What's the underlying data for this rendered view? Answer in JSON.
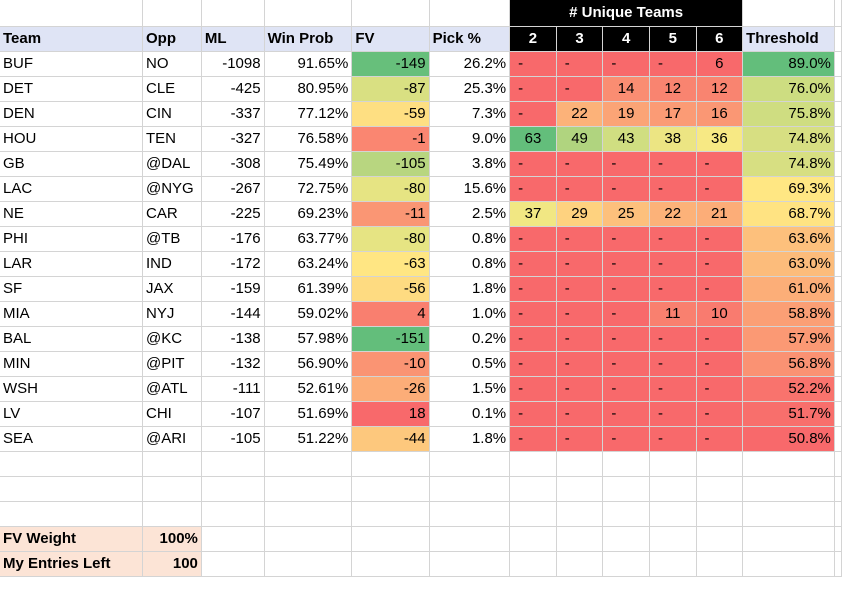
{
  "headers": {
    "super": "# Unique Teams",
    "team": "Team",
    "opp": "Opp",
    "ml": "ML",
    "win_prob": "Win Prob",
    "fv": "FV",
    "pick_pct": "Pick %",
    "unique": [
      "2",
      "3",
      "4",
      "5",
      "6"
    ],
    "threshold": "Threshold"
  },
  "rows": [
    {
      "team": "BUF",
      "opp": "NO",
      "ml": "-1098",
      "win_prob": "91.65%",
      "fv": "-149",
      "pick": "26.2%",
      "u": [
        "-",
        "-",
        "-",
        "-",
        "6"
      ],
      "threshold": "89.0%"
    },
    {
      "team": "DET",
      "opp": "CLE",
      "ml": "-425",
      "win_prob": "80.95%",
      "fv": "-87",
      "pick": "25.3%",
      "u": [
        "-",
        "-",
        "14",
        "12",
        "12"
      ],
      "threshold": "76.0%"
    },
    {
      "team": "DEN",
      "opp": "CIN",
      "ml": "-337",
      "win_prob": "77.12%",
      "fv": "-59",
      "pick": "7.3%",
      "u": [
        "-",
        "22",
        "19",
        "17",
        "16"
      ],
      "threshold": "75.8%"
    },
    {
      "team": "HOU",
      "opp": "TEN",
      "ml": "-327",
      "win_prob": "76.58%",
      "fv": "-1",
      "pick": "9.0%",
      "u": [
        "63",
        "49",
        "43",
        "38",
        "36"
      ],
      "threshold": "74.8%"
    },
    {
      "team": "GB",
      "opp": "@DAL",
      "ml": "-308",
      "win_prob": "75.49%",
      "fv": "-105",
      "pick": "3.8%",
      "u": [
        "-",
        "-",
        "-",
        "-",
        "-"
      ],
      "threshold": "74.8%"
    },
    {
      "team": "LAC",
      "opp": "@NYG",
      "ml": "-267",
      "win_prob": "72.75%",
      "fv": "-80",
      "pick": "15.6%",
      "u": [
        "-",
        "-",
        "-",
        "-",
        "-"
      ],
      "threshold": "69.3%"
    },
    {
      "team": "NE",
      "opp": "CAR",
      "ml": "-225",
      "win_prob": "69.23%",
      "fv": "-11",
      "pick": "2.5%",
      "u": [
        "37",
        "29",
        "25",
        "22",
        "21"
      ],
      "threshold": "68.7%"
    },
    {
      "team": "PHI",
      "opp": "@TB",
      "ml": "-176",
      "win_prob": "63.77%",
      "fv": "-80",
      "pick": "0.8%",
      "u": [
        "-",
        "-",
        "-",
        "-",
        "-"
      ],
      "threshold": "63.6%"
    },
    {
      "team": "LAR",
      "opp": "IND",
      "ml": "-172",
      "win_prob": "63.24%",
      "fv": "-63",
      "pick": "0.8%",
      "u": [
        "-",
        "-",
        "-",
        "-",
        "-"
      ],
      "threshold": "63.0%"
    },
    {
      "team": "SF",
      "opp": "JAX",
      "ml": "-159",
      "win_prob": "61.39%",
      "fv": "-56",
      "pick": "1.8%",
      "u": [
        "-",
        "-",
        "-",
        "-",
        "-"
      ],
      "threshold": "61.0%"
    },
    {
      "team": "MIA",
      "opp": "NYJ",
      "ml": "-144",
      "win_prob": "59.02%",
      "fv": "4",
      "pick": "1.0%",
      "u": [
        "-",
        "-",
        "-",
        "11",
        "10"
      ],
      "threshold": "58.8%"
    },
    {
      "team": "BAL",
      "opp": "@KC",
      "ml": "-138",
      "win_prob": "57.98%",
      "fv": "-151",
      "pick": "0.2%",
      "u": [
        "-",
        "-",
        "-",
        "-",
        "-"
      ],
      "threshold": "57.9%"
    },
    {
      "team": "MIN",
      "opp": "@PIT",
      "ml": "-132",
      "win_prob": "56.90%",
      "fv": "-10",
      "pick": "0.5%",
      "u": [
        "-",
        "-",
        "-",
        "-",
        "-"
      ],
      "threshold": "56.8%"
    },
    {
      "team": "WSH",
      "opp": "@ATL",
      "ml": "-111",
      "win_prob": "52.61%",
      "fv": "-26",
      "pick": "1.5%",
      "u": [
        "-",
        "-",
        "-",
        "-",
        "-"
      ],
      "threshold": "52.2%"
    },
    {
      "team": "LV",
      "opp": "CHI",
      "ml": "-107",
      "win_prob": "51.69%",
      "fv": "18",
      "pick": "0.1%",
      "u": [
        "-",
        "-",
        "-",
        "-",
        "-"
      ],
      "threshold": "51.7%"
    },
    {
      "team": "SEA",
      "opp": "@ARI",
      "ml": "-105",
      "win_prob": "51.22%",
      "fv": "-44",
      "pick": "1.8%",
      "u": [
        "-",
        "-",
        "-",
        "-",
        "-"
      ],
      "threshold": "50.8%"
    }
  ],
  "settings": {
    "fv_weight_label": "FV Weight",
    "fv_weight_value": "100%",
    "entries_label": "My Entries Left",
    "entries_value": "100"
  },
  "colors": {
    "header_fill": "#dfe4f5",
    "settings_fill": "#fce4d6",
    "unique_header_fill": "#000000",
    "red": "#f8696b",
    "yellow": "#ffeb84",
    "green": "#63be7b"
  }
}
